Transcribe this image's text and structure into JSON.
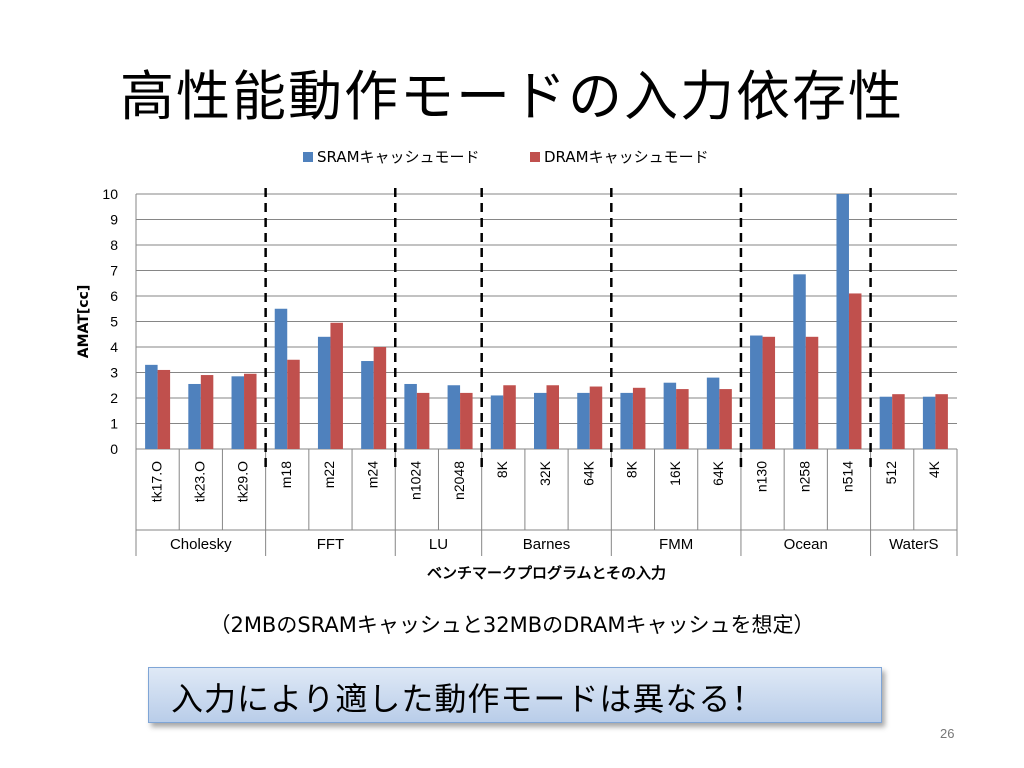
{
  "title": "高性能動作モードの入力依存性",
  "caption": "（2MBのSRAMキャッシュと32MBのDRAMキャッシュを想定）",
  "callout": "入力により適した動作モードは異なる！",
  "page_number": "26",
  "colors": {
    "sram": "#4f81bd",
    "dram": "#c0504d",
    "grid": "#868686",
    "axis": "#868686"
  },
  "chart_data": {
    "type": "bar",
    "ylabel": "AMAT[cc]",
    "xlabel": "ベンチマークプログラムとその入力",
    "ylim": [
      0,
      10
    ],
    "yticks": [
      "0",
      "1",
      "2",
      "3",
      "4",
      "5",
      "6",
      "7",
      "8",
      "9",
      "10"
    ],
    "legend_position": "top",
    "grid": true,
    "categories": [
      "tk17.O",
      "tk23.O",
      "tk29.O",
      "m18",
      "m22",
      "m24",
      "n1024",
      "n2048",
      "8K",
      "32K",
      "64K",
      "8K",
      "16K",
      "64K",
      "n130",
      "n258",
      "n514",
      "512",
      "4K"
    ],
    "groups": [
      {
        "name": "Cholesky",
        "count": 3
      },
      {
        "name": "FFT",
        "count": 3
      },
      {
        "name": "LU",
        "count": 2
      },
      {
        "name": "Barnes",
        "count": 3
      },
      {
        "name": "FMM",
        "count": 3
      },
      {
        "name": "Ocean",
        "count": 3
      },
      {
        "name": "WaterS",
        "count": 2
      }
    ],
    "series": [
      {
        "name": "SRAMキャッシュモード",
        "values": [
          3.3,
          2.55,
          2.85,
          5.5,
          4.4,
          3.45,
          2.55,
          2.5,
          2.1,
          2.2,
          2.2,
          2.2,
          2.6,
          2.8,
          4.45,
          6.85,
          10.0,
          2.05,
          2.05
        ]
      },
      {
        "name": "DRAMキャッシュモード",
        "values": [
          3.1,
          2.9,
          2.95,
          3.5,
          4.95,
          4.0,
          2.2,
          2.2,
          2.5,
          2.5,
          2.45,
          2.4,
          2.35,
          2.35,
          4.4,
          4.4,
          6.1,
          2.15,
          2.15
        ]
      }
    ]
  }
}
